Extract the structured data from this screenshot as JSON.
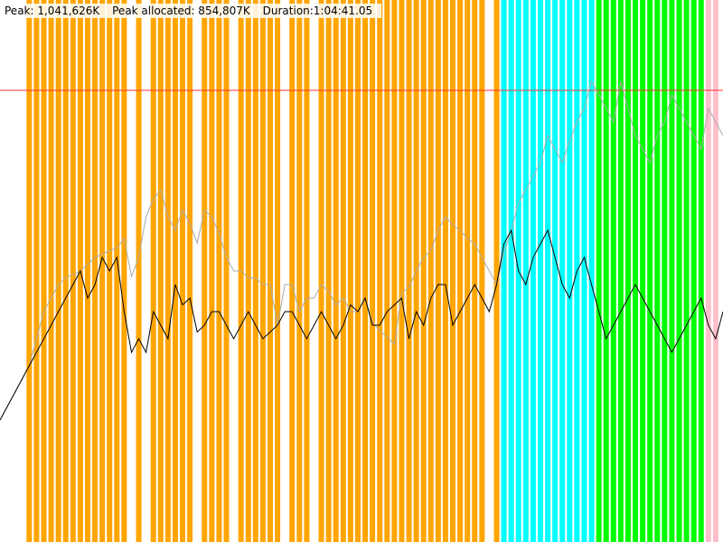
{
  "stats": {
    "peak": "Peak: 1,041,626K",
    "peak_allocated": "Peak allocated: 854,807K",
    "duration": "Duration:1:04:41.05"
  },
  "colors": {
    "background": "#ffffff",
    "band_orange": "#ffa500",
    "band_cyan": "#00ffff",
    "band_green": "#00ff00",
    "band_pink": "#ffc0cb",
    "peak_line": "#ff3030",
    "series_gray": "#aaaaaa",
    "series_black": "#000000"
  },
  "chart_data": {
    "type": "line",
    "title": "",
    "xlabel": "",
    "ylabel": "",
    "y_unit": "K",
    "x_unit": "seconds",
    "xlim": [
      0,
      3881
    ],
    "ylim": [
      0,
      1250000
    ],
    "grid": false,
    "legend": "none",
    "peak_marker": {
      "value": 1041626
    },
    "band_groups": [
      {
        "color": "band_orange",
        "x": [
          4,
          5,
          6,
          7,
          8,
          9,
          10,
          11,
          12,
          13,
          14,
          15,
          16,
          17,
          19,
          21,
          22,
          23,
          24,
          25,
          26,
          28,
          29,
          30,
          31,
          33,
          34,
          35,
          36,
          37,
          38,
          40,
          41,
          42,
          44,
          45,
          46,
          47,
          48,
          49,
          50,
          51,
          52,
          53,
          54,
          55,
          56,
          57,
          58,
          59,
          60,
          61,
          62,
          63,
          64,
          65,
          66,
          68,
          69
        ]
      },
      {
        "color": "band_cyan",
        "x": [
          69,
          70,
          71,
          72,
          73,
          74,
          75,
          76,
          77,
          78,
          79,
          80,
          81
        ]
      },
      {
        "color": "band_green",
        "x": [
          82,
          83,
          84,
          85,
          86,
          87,
          88,
          89,
          90,
          91,
          92,
          93,
          94,
          95,
          96
        ]
      },
      {
        "color": "band_pink",
        "x": [
          97,
          98
        ]
      }
    ],
    "series": [
      {
        "name": "",
        "color": "series_gray",
        "x": [
          0,
          1,
          2,
          3,
          4,
          5,
          6,
          7,
          8,
          9,
          10,
          11,
          12,
          13,
          14,
          15,
          16,
          17,
          18,
          19,
          20,
          21,
          22,
          23,
          24,
          25,
          26,
          27,
          28,
          29,
          30,
          31,
          32,
          33,
          34,
          35,
          36,
          37,
          38,
          39,
          40,
          41,
          42,
          43,
          44,
          45,
          46,
          47,
          48,
          49,
          50,
          51,
          52,
          53,
          54,
          55,
          56,
          57,
          58,
          59,
          60,
          61,
          62,
          63,
          64,
          65,
          66,
          67,
          68,
          69,
          70,
          71,
          72,
          73,
          74,
          75,
          76,
          77,
          78,
          79,
          80,
          81,
          82,
          83,
          84,
          85,
          86,
          87,
          88,
          89,
          90,
          91,
          92,
          93,
          94,
          95,
          96,
          97,
          98,
          99
        ],
        "values": [
          281250,
          312500,
          343750,
          375000,
          406250,
          468750,
          531250,
          562500,
          593750,
          609375,
          617187,
          625000,
          640625,
          656250,
          664062,
          671875,
          678125,
          700000,
          612500,
          656250,
          750000,
          790625,
          812500,
          750000,
          718750,
          765625,
          734375,
          689375,
          765625,
          750000,
          712500,
          656250,
          625000,
          625000,
          609375,
          608125,
          593750,
          593750,
          500000,
          593750,
          593750,
          531250,
          562500,
          562500,
          593750,
          578125,
          546875,
          562500,
          531250,
          531250,
          562500,
          506250,
          487500,
          471875,
          456250,
          575000,
          587500,
          625000,
          656250,
          671875,
          718750,
          750000,
          731250,
          718750,
          700000,
          687500,
          656250,
          625000,
          593750,
          665625,
          718750,
          781250,
          812500,
          843750,
          875000,
          937500,
          906250,
          875000,
          925000,
          968750,
          1000000,
          1062500,
          1031250,
          1000000,
          968750,
          1062500,
          1000000,
          937500,
          906250,
          875000,
          937500,
          968750,
          1031250,
          1000000,
          968750,
          937500,
          906250,
          1000000,
          968750,
          937500
        ]
      },
      {
        "name": "",
        "color": "series_black",
        "x": [
          0,
          1,
          2,
          3,
          4,
          5,
          6,
          7,
          8,
          9,
          10,
          11,
          12,
          13,
          14,
          15,
          16,
          17,
          18,
          19,
          20,
          21,
          22,
          23,
          24,
          25,
          26,
          27,
          28,
          29,
          30,
          31,
          32,
          33,
          34,
          35,
          36,
          37,
          38,
          39,
          40,
          41,
          42,
          43,
          44,
          45,
          46,
          47,
          48,
          49,
          50,
          51,
          52,
          53,
          54,
          55,
          56,
          57,
          58,
          59,
          60,
          61,
          62,
          63,
          64,
          65,
          66,
          67,
          68,
          69,
          70,
          71,
          72,
          73,
          74,
          75,
          76,
          77,
          78,
          79,
          80,
          81,
          82,
          83,
          84,
          85,
          86,
          87,
          88,
          89,
          90,
          91,
          92,
          93,
          94,
          95,
          96,
          97,
          98,
          99
        ],
        "values": [
          281250,
          312500,
          343750,
          375000,
          406250,
          437500,
          468750,
          500000,
          531250,
          562500,
          593750,
          625000,
          562500,
          593750,
          656250,
          625000,
          656250,
          531250,
          437500,
          468750,
          437500,
          531250,
          500000,
          468750,
          593750,
          546875,
          562500,
          484375,
          500000,
          531250,
          531250,
          500000,
          468750,
          500000,
          531250,
          500000,
          468750,
          484375,
          500000,
          531250,
          531250,
          500000,
          468750,
          500000,
          531250,
          500000,
          468750,
          500000,
          546875,
          531250,
          562500,
          500000,
          500000,
          531250,
          546875,
          562500,
          468750,
          531250,
          500000,
          562500,
          593750,
          593750,
          500000,
          531250,
          562500,
          593750,
          562500,
          531250,
          593750,
          687500,
          718750,
          625000,
          593750,
          656250,
          687500,
          718750,
          656250,
          593750,
          562500,
          625000,
          656250,
          593750,
          531250,
          468750,
          500000,
          531250,
          562500,
          593750,
          562500,
          531250,
          500000,
          468750,
          437500,
          468750,
          500000,
          531250,
          562500,
          500000,
          468750,
          531250
        ]
      }
    ]
  }
}
